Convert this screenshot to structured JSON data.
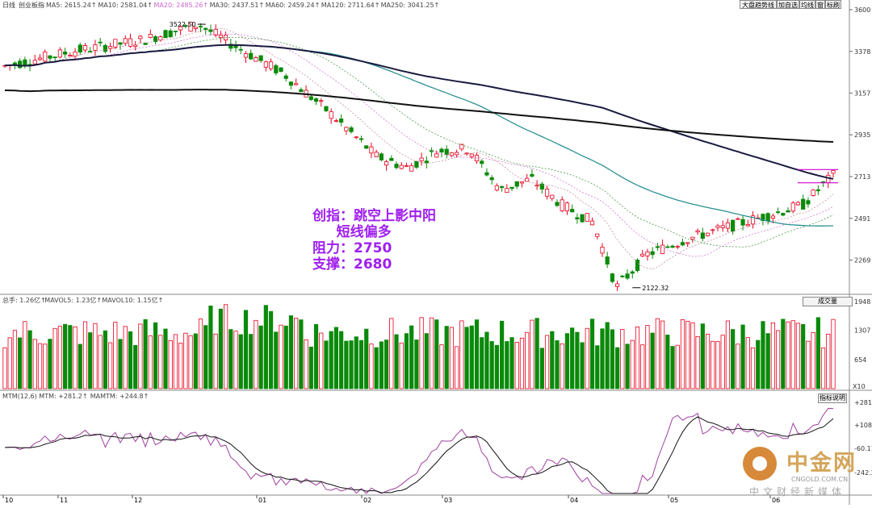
{
  "header": {
    "indicator": "日线",
    "name": "创业板指",
    "ma_legend": [
      {
        "label": "MA5: 2615.24",
        "color": "#444444"
      },
      {
        "label": "MA10: 2581.04",
        "color": "#444444"
      },
      {
        "label": "MA20: 2485.26",
        "color": "#cc66cc"
      },
      {
        "label": "MA30: 2437.51",
        "color": "#444444"
      },
      {
        "label": "MA60: 2459.24",
        "color": "#444444"
      },
      {
        "label": "MA120: 2711.64",
        "color": "#444444"
      },
      {
        "label": "MA250: 3041.25",
        "color": "#444444"
      }
    ],
    "buttons": [
      "大盘趋势线",
      "加自选",
      "均线",
      "窗",
      "标刷"
    ]
  },
  "annotation": {
    "line1": "创指：跳空上影中阳",
    "line2": "     短线偏多",
    "line3": "阻力：2750",
    "line4": "支撑：2680"
  },
  "volume": {
    "legend": [
      {
        "label": "总手: 1.26亿",
        "color": "#444444"
      },
      {
        "label": "MAVOL5: 1.23亿",
        "color": "#444444"
      },
      {
        "label": "MAVOL10: 1.15亿",
        "color": "#444444"
      }
    ],
    "dropdown": "成交量",
    "unit": "X10"
  },
  "mtm": {
    "legend": [
      {
        "label": "MTM(12,6) MTM: +281.2",
        "color": "#444444"
      },
      {
        "label": "MAMTM: +244.8",
        "color": "#444444"
      }
    ],
    "button": "指标说明"
  },
  "watermark": {
    "name": "中金网",
    "url": "CNGOLD.COM.CN",
    "sub": "中文财经新媒体"
  },
  "colors": {
    "up": "#e8001c",
    "down": "#0a8a0a",
    "ma250": "#111111",
    "ma120": "#1a1a40",
    "ma60": "#2a9090",
    "ma20": "#cc66cc",
    "mtm": "#a040a0"
  },
  "chart_data": [
    {
      "type": "candlestick",
      "title": "",
      "x_ticks": [
        "10",
        "11",
        "12",
        "01",
        "02",
        "03",
        "04",
        "05",
        "06"
      ],
      "y_ticks": [
        3600,
        3378,
        3157,
        2935,
        2713,
        2491,
        2269
      ],
      "ylim": [
        2100,
        3600
      ],
      "annotations": [
        {
          "label": "3522.50",
          "value": 3522.5
        },
        {
          "label": "2122.32",
          "value": 2122.32
        }
      ],
      "grid": false,
      "guide_lines": [
        2750,
        2680
      ],
      "key_points": [
        {
          "date": "10",
          "close": 3300
        },
        {
          "date": "11",
          "close": 3420
        },
        {
          "date": "12",
          "close": 3522.5
        },
        {
          "date": "01",
          "close": 3300
        },
        {
          "date": "02",
          "close": 2750
        },
        {
          "date": "03",
          "close": 2860
        },
        {
          "date": "04",
          "close": 2600
        },
        {
          "date": "05",
          "close": 2122.32
        },
        {
          "date": "06",
          "close": 2720
        }
      ]
    },
    {
      "type": "bar",
      "title": "",
      "y_ticks": [
        1948,
        1307,
        654
      ],
      "ylim": [
        0,
        1950
      ]
    },
    {
      "type": "line",
      "title": "",
      "y_ticks": [
        "+281.2",
        "+108.0",
        "-60.11",
        "-242.2"
      ]
    }
  ]
}
